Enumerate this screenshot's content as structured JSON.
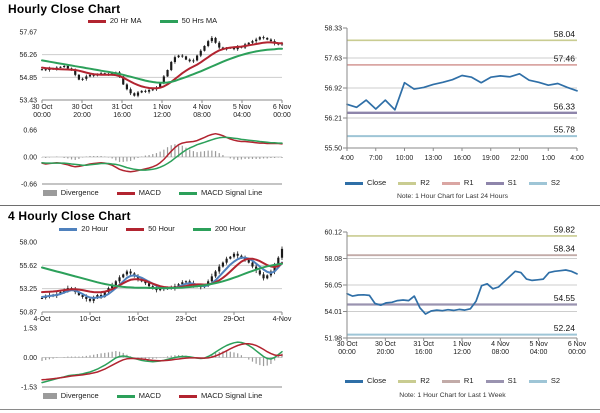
{
  "separators": {
    "mid_color": "#6e6e6e",
    "bottom_color": "#8a8a8a"
  },
  "chart_data": [
    {
      "id": "hourly_close",
      "type": "candles",
      "title": "Hourly Close Chart",
      "ylim": [
        53.43,
        57.67
      ],
      "yticks": [
        "57.67",
        "56.26",
        "54.85",
        "53.43"
      ],
      "x_categories": [
        "30 Oct\n00:00",
        "30 Oct\n20:00",
        "31 Oct\n16:00",
        "1 Nov\n12:00",
        "4 Nov\n08:00",
        "5 Nov\n04:00",
        "6 Nov\n00:00"
      ],
      "wick": 0.12,
      "candle_color": "#1a1a1a",
      "close": [
        55.35,
        55.3,
        55.4,
        55.35,
        55.45,
        55.5,
        55.55,
        55.4,
        55.3,
        55.0,
        54.7,
        54.75,
        54.9,
        55.0,
        54.95,
        55.05,
        55.1,
        55.0,
        55.05,
        55.1,
        55.15,
        54.9,
        54.4,
        54.1,
        53.85,
        53.7,
        53.9,
        54.0,
        53.95,
        54.05,
        54.1,
        54.2,
        54.5,
        54.9,
        55.3,
        55.8,
        56.1,
        56.2,
        56.15,
        55.95,
        55.85,
        55.9,
        56.2,
        56.5,
        56.8,
        57.1,
        57.3,
        57.0,
        56.7,
        56.6,
        56.65,
        56.7,
        56.6,
        56.75,
        56.7,
        56.9,
        57.0,
        57.1,
        57.2,
        57.35,
        57.3,
        57.2,
        57.1,
        56.95,
        56.9,
        56.95
      ],
      "series": [
        {
          "name": "20 Hr MA",
          "color": "#B22430",
          "values": [
            55.45,
            55.42,
            55.4,
            55.38,
            55.36,
            55.35,
            55.34,
            55.33,
            55.32,
            55.3,
            55.26,
            55.2,
            55.14,
            55.08,
            55.04,
            55.02,
            55.0,
            55.0,
            55.0,
            55.0,
            54.98,
            54.92,
            54.82,
            54.7,
            54.58,
            54.46,
            54.36,
            54.28,
            54.22,
            54.18,
            54.16,
            54.16,
            54.2,
            54.28,
            54.4,
            54.56,
            54.74,
            54.92,
            55.1,
            55.26,
            55.4,
            55.52,
            55.64,
            55.78,
            55.94,
            56.1,
            56.26,
            56.4,
            56.52,
            56.6,
            56.66,
            56.7,
            56.72,
            56.74,
            56.76,
            56.8,
            56.84,
            56.88,
            56.92,
            56.96,
            57.0,
            57.02,
            57.02,
            57.0,
            56.98,
            56.96
          ]
        },
        {
          "name": "50 Hrs MA",
          "color": "#2CA05A",
          "values": [
            55.9,
            55.86,
            55.82,
            55.78,
            55.74,
            55.7,
            55.66,
            55.62,
            55.58,
            55.54,
            55.5,
            55.46,
            55.42,
            55.38,
            55.34,
            55.3,
            55.26,
            55.22,
            55.18,
            55.14,
            55.1,
            55.05,
            55.0,
            54.94,
            54.88,
            54.82,
            54.76,
            54.7,
            54.64,
            54.59,
            54.55,
            54.52,
            54.5,
            54.5,
            54.52,
            54.56,
            54.62,
            54.7,
            54.78,
            54.86,
            54.95,
            55.04,
            55.13,
            55.22,
            55.32,
            55.42,
            55.52,
            55.62,
            55.72,
            55.82,
            55.91,
            56.0,
            56.08,
            56.16,
            56.23,
            56.3,
            56.36,
            56.41,
            56.46,
            56.5,
            56.53,
            56.56,
            56.58,
            56.6,
            56.62,
            56.63
          ]
        }
      ]
    },
    {
      "id": "hourly_macd",
      "type": "macd",
      "ylim": [
        -0.66,
        0.66
      ],
      "yticks": [
        "0.66",
        "0.00",
        "-0.66"
      ],
      "legend": [
        "Divergence",
        "MACD",
        "MACD Signal Line"
      ],
      "divergence_color": "#9B9B9B",
      "macd_color": "#B22430",
      "signal_color": "#2CA05A",
      "macd": [
        -0.15,
        -0.17,
        -0.16,
        -0.15,
        -0.14,
        -0.15,
        -0.17,
        -0.19,
        -0.22,
        -0.24,
        -0.23,
        -0.21,
        -0.19,
        -0.17,
        -0.16,
        -0.15,
        -0.14,
        -0.15,
        -0.17,
        -0.2,
        -0.25,
        -0.3,
        -0.33,
        -0.35,
        -0.36,
        -0.35,
        -0.33,
        -0.31,
        -0.29,
        -0.27,
        -0.24,
        -0.2,
        -0.14,
        -0.06,
        0.04,
        0.14,
        0.23,
        0.3,
        0.34,
        0.36,
        0.37,
        0.38,
        0.4,
        0.44,
        0.48,
        0.52,
        0.55,
        0.57,
        0.55,
        0.52,
        0.48,
        0.44,
        0.41,
        0.39,
        0.38,
        0.38,
        0.37,
        0.36,
        0.35,
        0.34,
        0.34,
        0.33,
        0.33,
        0.33,
        0.33,
        0.32
      ],
      "signal": [
        -0.14,
        -0.15,
        -0.15,
        -0.15,
        -0.15,
        -0.15,
        -0.15,
        -0.16,
        -0.17,
        -0.18,
        -0.19,
        -0.2,
        -0.2,
        -0.19,
        -0.18,
        -0.17,
        -0.16,
        -0.16,
        -0.16,
        -0.17,
        -0.18,
        -0.2,
        -0.23,
        -0.26,
        -0.28,
        -0.3,
        -0.31,
        -0.32,
        -0.32,
        -0.31,
        -0.3,
        -0.28,
        -0.25,
        -0.21,
        -0.16,
        -0.1,
        -0.03,
        0.04,
        0.11,
        0.17,
        0.22,
        0.26,
        0.3,
        0.33,
        0.36,
        0.39,
        0.42,
        0.45,
        0.47,
        0.48,
        0.48,
        0.47,
        0.46,
        0.45,
        0.43,
        0.42,
        0.41,
        0.4,
        0.39,
        0.38,
        0.37,
        0.36,
        0.35,
        0.35,
        0.34,
        0.34
      ]
    },
    {
      "id": "hourly_pivots",
      "type": "line",
      "ylim": [
        55.5,
        58.33
      ],
      "yticks": [
        "58.33",
        "57.63",
        "56.92",
        "56.21",
        "55.50"
      ],
      "x_categories": [
        "4:00",
        "7:00",
        "10:00",
        "13:00",
        "16:00",
        "19:00",
        "22:00",
        "1:00",
        "4:00"
      ],
      "close_color": "#2F6FA7",
      "close": [
        56.53,
        56.46,
        56.63,
        56.42,
        56.63,
        56.4,
        57.04,
        56.89,
        56.93,
        57.0,
        57.05,
        57.11,
        57.21,
        57.17,
        57.04,
        57.17,
        57.2,
        57.18,
        57.25,
        57.1,
        57.05,
        56.98,
        57.02,
        56.93,
        56.85
      ],
      "pivots": [
        {
          "name": "R2",
          "value": 58.04,
          "color": "#C9CC91",
          "width": 1.6
        },
        {
          "name": "R1",
          "value": 57.46,
          "color": "#DAA6A3",
          "width": 1.8
        },
        {
          "name": "S1",
          "value": 56.33,
          "color": "#8E85AB",
          "width": 2.4
        },
        {
          "name": "S2",
          "value": 55.78,
          "color": "#9EC5D6",
          "width": 2.0
        }
      ],
      "legend": [
        "Close",
        "R2",
        "R1",
        "S1",
        "S2"
      ],
      "note": "Note: 1 Hour Chart for Last 24 Hours"
    },
    {
      "id": "four_hourly_close",
      "type": "candles",
      "title": "4 Hourly Close Chart",
      "ylim": [
        50.87,
        58.0
      ],
      "yticks": [
        "58.00",
        "55.62",
        "53.25",
        "50.87"
      ],
      "x_categories": [
        "4-Oct",
        "10-Oct",
        "16-Oct",
        "23-Oct",
        "29-Oct",
        "4-Nov"
      ],
      "wick": 0.28,
      "candle_color": "#1a1a1a",
      "close": [
        52.3,
        52.5,
        52.6,
        52.5,
        52.7,
        52.9,
        53.1,
        53.3,
        53.2,
        52.9,
        52.6,
        52.4,
        52.2,
        52.0,
        52.3,
        52.6,
        52.4,
        52.9,
        53.3,
        53.6,
        54.0,
        54.4,
        54.7,
        55.0,
        54.8,
        54.5,
        54.2,
        54.0,
        53.8,
        53.5,
        53.3,
        53.1,
        53.3,
        53.2,
        53.4,
        53.3,
        53.5,
        53.7,
        53.9,
        54.0,
        53.8,
        53.6,
        53.5,
        53.4,
        53.6,
        54.0,
        54.5,
        55.0,
        55.5,
        55.9,
        56.3,
        56.5,
        56.8,
        56.6,
        56.4,
        56.2,
        55.9,
        55.5,
        55.1,
        54.7,
        54.3,
        54.6,
        55.0,
        55.6,
        56.4,
        57.3
      ],
      "series": [
        {
          "name": "20 Hour",
          "color": "#4F81BD",
          "values": [
            52.4,
            52.45,
            52.5,
            52.55,
            52.6,
            52.7,
            52.85,
            53.0,
            53.1,
            53.05,
            52.9,
            52.7,
            52.5,
            52.35,
            52.3,
            52.35,
            52.4,
            52.5,
            52.7,
            53.0,
            53.3,
            53.65,
            54.0,
            54.35,
            54.55,
            54.6,
            54.5,
            54.35,
            54.15,
            53.95,
            53.75,
            53.55,
            53.4,
            53.3,
            53.3,
            53.3,
            53.35,
            53.45,
            53.6,
            53.75,
            53.8,
            53.75,
            53.65,
            53.55,
            53.5,
            53.6,
            53.8,
            54.1,
            54.5,
            54.9,
            55.3,
            55.7,
            56.0,
            56.25,
            56.4,
            56.4,
            56.3,
            56.1,
            55.8,
            55.5,
            55.2,
            54.95,
            54.85,
            55.0,
            55.4,
            55.9
          ]
        },
        {
          "name": "50 Hour",
          "color": "#B22430",
          "values": [
            52.9,
            52.92,
            52.94,
            52.96,
            53.0,
            53.05,
            53.1,
            53.15,
            53.18,
            53.18,
            53.15,
            53.1,
            53.02,
            52.95,
            52.9,
            52.88,
            52.9,
            52.95,
            53.05,
            53.2,
            53.4,
            53.6,
            53.8,
            54.0,
            54.15,
            54.2,
            54.2,
            54.15,
            54.05,
            53.9,
            53.75,
            53.62,
            53.5,
            53.42,
            53.38,
            53.36,
            53.36,
            53.4,
            53.45,
            53.52,
            53.6,
            53.65,
            53.68,
            53.68,
            53.66,
            53.68,
            53.75,
            53.9,
            54.1,
            54.35,
            54.65,
            55.0,
            55.35,
            55.7,
            56.0,
            56.2,
            56.3,
            56.3,
            56.2,
            56.05,
            55.85,
            55.65,
            55.5,
            55.45,
            55.55,
            55.85
          ]
        },
        {
          "name": "200 Hour",
          "color": "#2CA05A",
          "values": [
            55.4,
            55.3,
            55.2,
            55.1,
            55.0,
            54.9,
            54.8,
            54.7,
            54.6,
            54.5,
            54.4,
            54.3,
            54.2,
            54.1,
            54.0,
            53.9,
            53.8,
            53.72,
            53.65,
            53.58,
            53.52,
            53.47,
            53.43,
            53.4,
            53.38,
            53.36,
            53.35,
            53.34,
            53.33,
            53.32,
            53.31,
            53.3,
            53.3,
            53.3,
            53.3,
            53.31,
            53.32,
            53.34,
            53.36,
            53.39,
            53.42,
            53.46,
            53.5,
            53.55,
            53.6,
            53.66,
            53.73,
            53.81,
            53.9,
            54.0,
            54.11,
            54.23,
            54.36,
            54.5,
            54.64,
            54.78,
            54.92,
            55.06,
            55.19,
            55.31,
            55.42,
            55.52,
            55.6,
            55.67,
            55.73,
            55.78
          ]
        }
      ]
    },
    {
      "id": "four_hourly_macd",
      "type": "macd",
      "ylim": [
        -1.53,
        1.53
      ],
      "yticks": [
        "1.53",
        "0.00",
        "-1.53"
      ],
      "legend": [
        "Divergence",
        "MACD",
        "MACD Signal Line"
      ],
      "divergence_color": "#9B9B9B",
      "macd_color": "#2CA05A",
      "signal_color": "#B22430",
      "macd": [
        -1.3,
        -1.25,
        -1.2,
        -1.15,
        -1.1,
        -1.05,
        -1.0,
        -0.95,
        -0.92,
        -0.9,
        -0.88,
        -0.85,
        -0.8,
        -0.75,
        -0.68,
        -0.6,
        -0.5,
        -0.4,
        -0.28,
        -0.15,
        -0.02,
        0.05,
        0.08,
        0.05,
        0.0,
        -0.05,
        -0.1,
        -0.15,
        -0.18,
        -0.2,
        -0.22,
        -0.2,
        -0.18,
        -0.15,
        -0.1,
        -0.05,
        0.0,
        0.03,
        0.05,
        0.05,
        0.03,
        0.0,
        -0.03,
        -0.05,
        -0.03,
        0.05,
        0.15,
        0.28,
        0.4,
        0.52,
        0.62,
        0.7,
        0.76,
        0.8,
        0.78,
        0.72,
        0.62,
        0.5,
        0.35,
        0.2,
        0.05,
        -0.05,
        -0.08,
        0.0,
        0.15,
        0.3
      ],
      "signal": [
        -1.15,
        -1.14,
        -1.12,
        -1.1,
        -1.08,
        -1.05,
        -1.02,
        -0.99,
        -0.96,
        -0.94,
        -0.92,
        -0.9,
        -0.87,
        -0.84,
        -0.8,
        -0.75,
        -0.68,
        -0.6,
        -0.5,
        -0.4,
        -0.3,
        -0.2,
        -0.12,
        -0.07,
        -0.05,
        -0.05,
        -0.06,
        -0.08,
        -0.1,
        -0.13,
        -0.15,
        -0.16,
        -0.17,
        -0.16,
        -0.15,
        -0.13,
        -0.1,
        -0.08,
        -0.05,
        -0.03,
        -0.02,
        -0.02,
        -0.02,
        -0.03,
        -0.03,
        -0.02,
        0.02,
        0.08,
        0.16,
        0.25,
        0.35,
        0.45,
        0.54,
        0.62,
        0.68,
        0.71,
        0.71,
        0.68,
        0.62,
        0.53,
        0.42,
        0.3,
        0.2,
        0.13,
        0.1,
        0.13
      ]
    },
    {
      "id": "weekly_pivots",
      "type": "line",
      "ylim": [
        51.98,
        60.12
      ],
      "yticks": [
        "60.12",
        "58.08",
        "56.05",
        "54.01",
        "51.98"
      ],
      "x_categories": [
        "30 Oct\n00:00",
        "30 Oct\n20:00",
        "31 Oct\n16:00",
        "1 Nov\n12:00",
        "4 Nov\n08:00",
        "5 Nov\n04:00",
        "6 Nov\n00:00"
      ],
      "close_color": "#2F6FA7",
      "close": [
        55.38,
        55.2,
        55.28,
        55.3,
        55.25,
        54.63,
        54.5,
        54.68,
        54.72,
        54.85,
        54.9,
        54.85,
        55.2,
        54.3,
        53.82,
        54.05,
        54.12,
        54.08,
        54.15,
        54.1,
        54.18,
        54.12,
        54.22,
        54.8,
        56.0,
        56.14,
        55.76,
        55.9,
        56.3,
        56.7,
        57.1,
        57.0,
        56.5,
        56.4,
        56.45,
        56.5,
        57.0,
        57.1,
        57.15,
        57.2,
        57.1,
        56.9
      ],
      "pivots": [
        {
          "name": "R2",
          "value": 59.82,
          "color": "#C9CC91",
          "width": 1.6
        },
        {
          "name": "R1",
          "value": 58.34,
          "color": "#C2ABA8",
          "width": 1.8
        },
        {
          "name": "S1",
          "value": 54.55,
          "color": "#9A93B0",
          "width": 2.2
        },
        {
          "name": "S2",
          "value": 52.24,
          "color": "#9EC5D6",
          "width": 2.0
        }
      ],
      "legend": [
        "Close",
        "R2",
        "R1",
        "S1",
        "S2"
      ],
      "note": "Note: 1 Hour Chart for Last 1 Week"
    }
  ]
}
